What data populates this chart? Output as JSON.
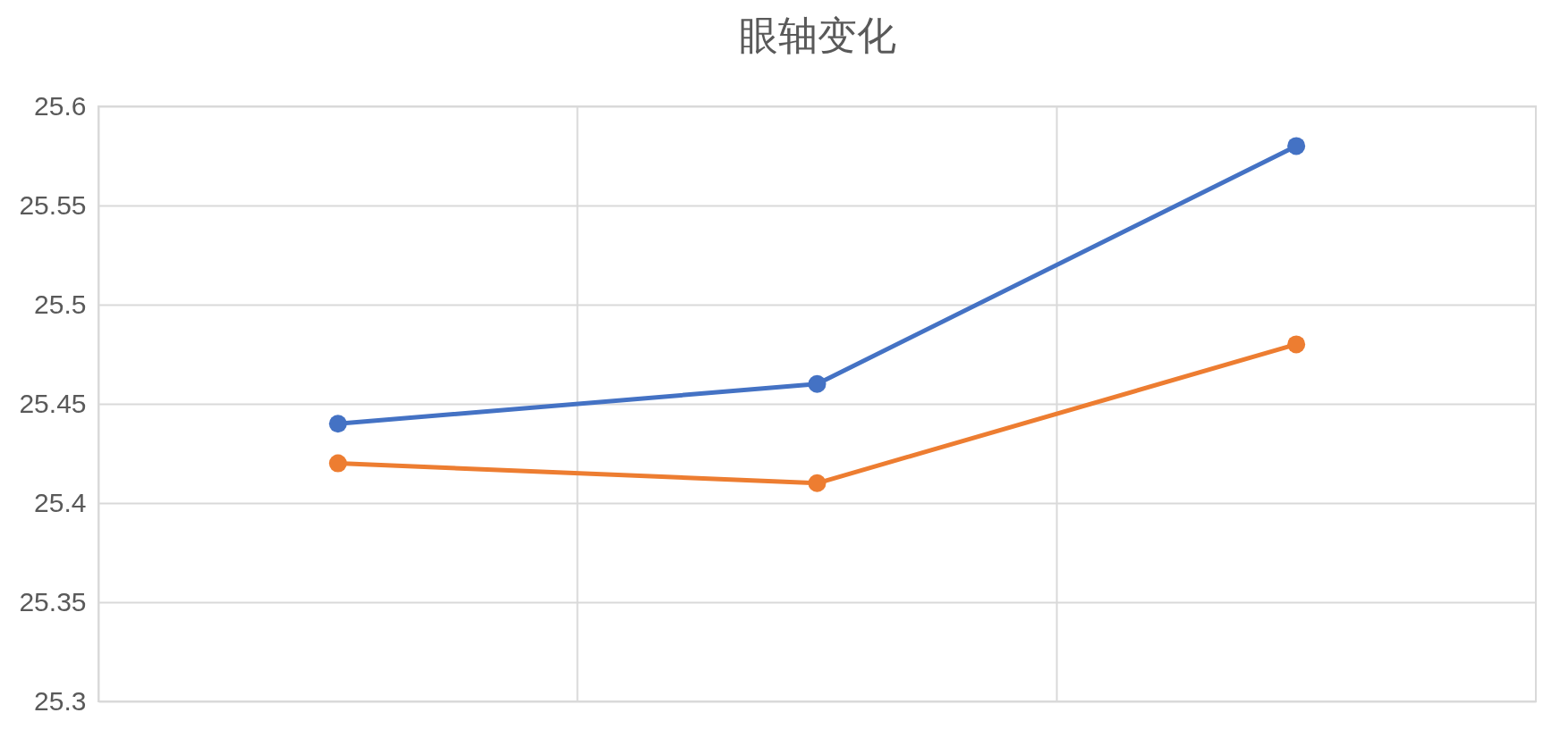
{
  "chart_data": {
    "type": "line",
    "title": "眼轴变化",
    "categories": [
      null,
      null,
      null
    ],
    "series": [
      {
        "color": "#4472c4",
        "values": [
          25.44,
          25.46,
          25.58
        ]
      },
      {
        "color": "#ed7d31",
        "values": [
          25.42,
          25.41,
          25.48
        ]
      }
    ],
    "ylim": [
      25.3,
      25.6
    ],
    "yticks": [
      25.3,
      25.35,
      25.4,
      25.45,
      25.5,
      25.55,
      25.6
    ],
    "grid": true,
    "marker": "circle",
    "tick_labels": "y"
  }
}
